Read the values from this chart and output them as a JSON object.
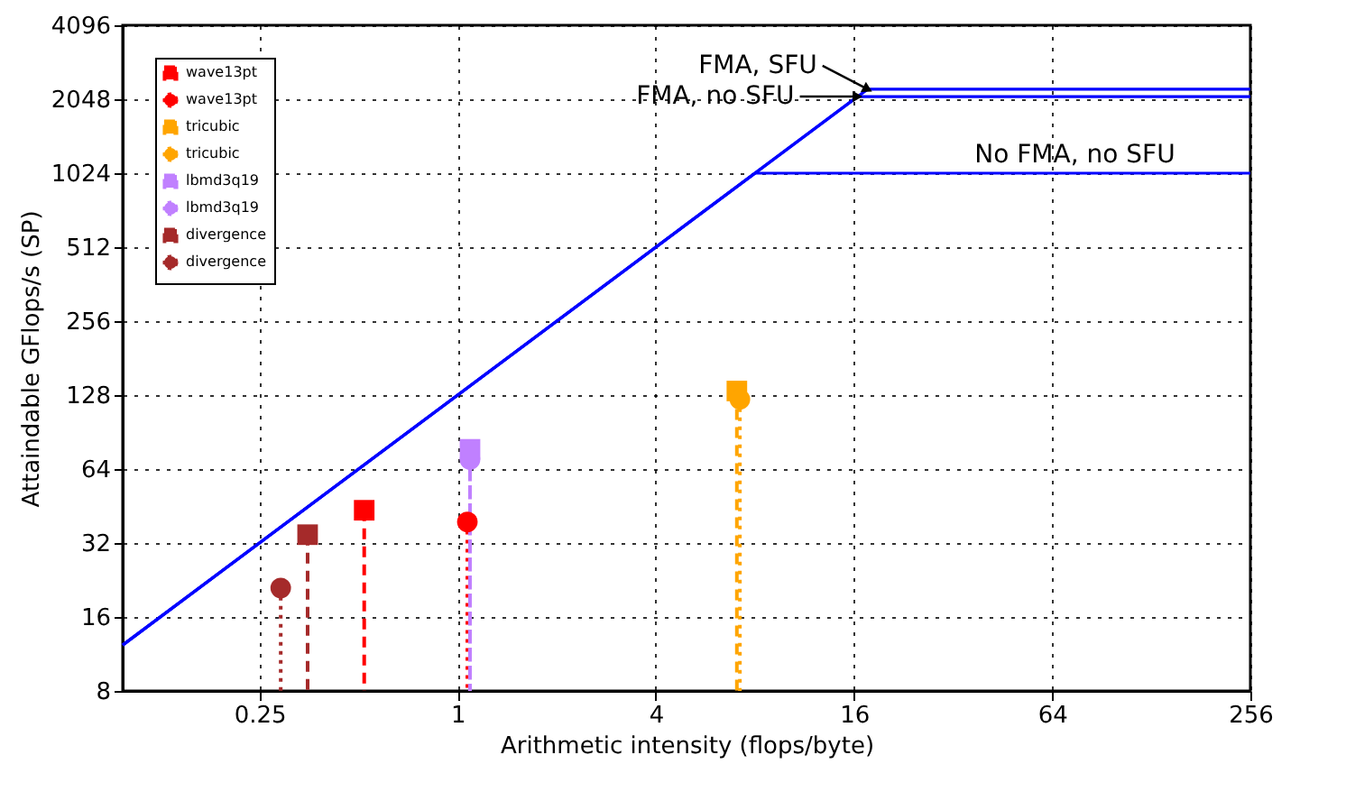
{
  "chart_data": {
    "type": "line",
    "xlabel": "Arithmetic intensity (flops/byte)",
    "ylabel": "Attaindable GFlops/s (SP)",
    "xlim": [
      0.096,
      256
    ],
    "ylim": [
      8,
      4096
    ],
    "xticks": [
      0.25,
      1,
      4,
      16,
      64,
      256
    ],
    "yticks": [
      8,
      16,
      32,
      64,
      128,
      256,
      512,
      1024,
      2048,
      4096
    ],
    "log": "xy",
    "grid": true,
    "legend": "top left",
    "series": [
      {
        "color": "#0000ff",
        "x": [
          0.096,
          17.6,
          256
        ],
        "values": [
          12.3,
          2250,
          2250
        ]
      },
      {
        "color": "#0000ff",
        "x": [
          0.096,
          16.4,
          256
        ],
        "values": [
          12.3,
          2100,
          2100
        ]
      },
      {
        "color": "#0000ff",
        "x": [
          0.096,
          8,
          256
        ],
        "values": [
          12.3,
          1024,
          1024
        ]
      },
      {
        "type": "lollipop",
        "name": "wave13pt",
        "color": "#ff0000",
        "marker": "square",
        "line_style": "dashed",
        "x": [
          0.52
        ],
        "values": [
          43.5
        ]
      },
      {
        "type": "lollipop",
        "name": "wave13pt",
        "color": "#ff0000",
        "marker": "circle",
        "line_style": "dotted",
        "x": [
          1.07
        ],
        "values": [
          39
        ]
      },
      {
        "type": "lollipop",
        "name": "tricubic",
        "color": "#ffa500",
        "marker": "square",
        "line_style": "dashed",
        "x": [
          7.05
        ],
        "values": [
          133
        ]
      },
      {
        "type": "lollipop",
        "name": "tricubic",
        "color": "#ffa500",
        "marker": "circle",
        "line_style": "dotted",
        "x": [
          7.2
        ],
        "values": [
          123
        ]
      },
      {
        "type": "lollipop",
        "name": "lbmd3q19",
        "color": "#c080ff",
        "marker": "square",
        "line_style": "dashed",
        "x": [
          1.09
        ],
        "values": [
          77
        ]
      },
      {
        "type": "lollipop",
        "name": "lbmd3q19",
        "color": "#c080ff",
        "marker": "circle",
        "line_style": "dotted",
        "x": [
          1.09
        ],
        "values": [
          70
        ]
      },
      {
        "type": "lollipop",
        "name": "divergence",
        "color": "#a52a2a",
        "marker": "square",
        "line_style": "dashed",
        "x": [
          0.35
        ],
        "values": [
          34.6
        ]
      },
      {
        "type": "lollipop",
        "name": "divergence",
        "color": "#a52a2a",
        "marker": "circle",
        "line_style": "dotted",
        "x": [
          0.29
        ],
        "values": [
          21
        ]
      }
    ],
    "annotations": [
      {
        "text": "FMA, SFU",
        "x": 17.6,
        "y": 2250
      },
      {
        "text": "FMA, no SFU",
        "x": 16.4,
        "y": 2100
      },
      {
        "text": "No FMA, no SFU",
        "x": 75,
        "y": 1024
      }
    ]
  }
}
